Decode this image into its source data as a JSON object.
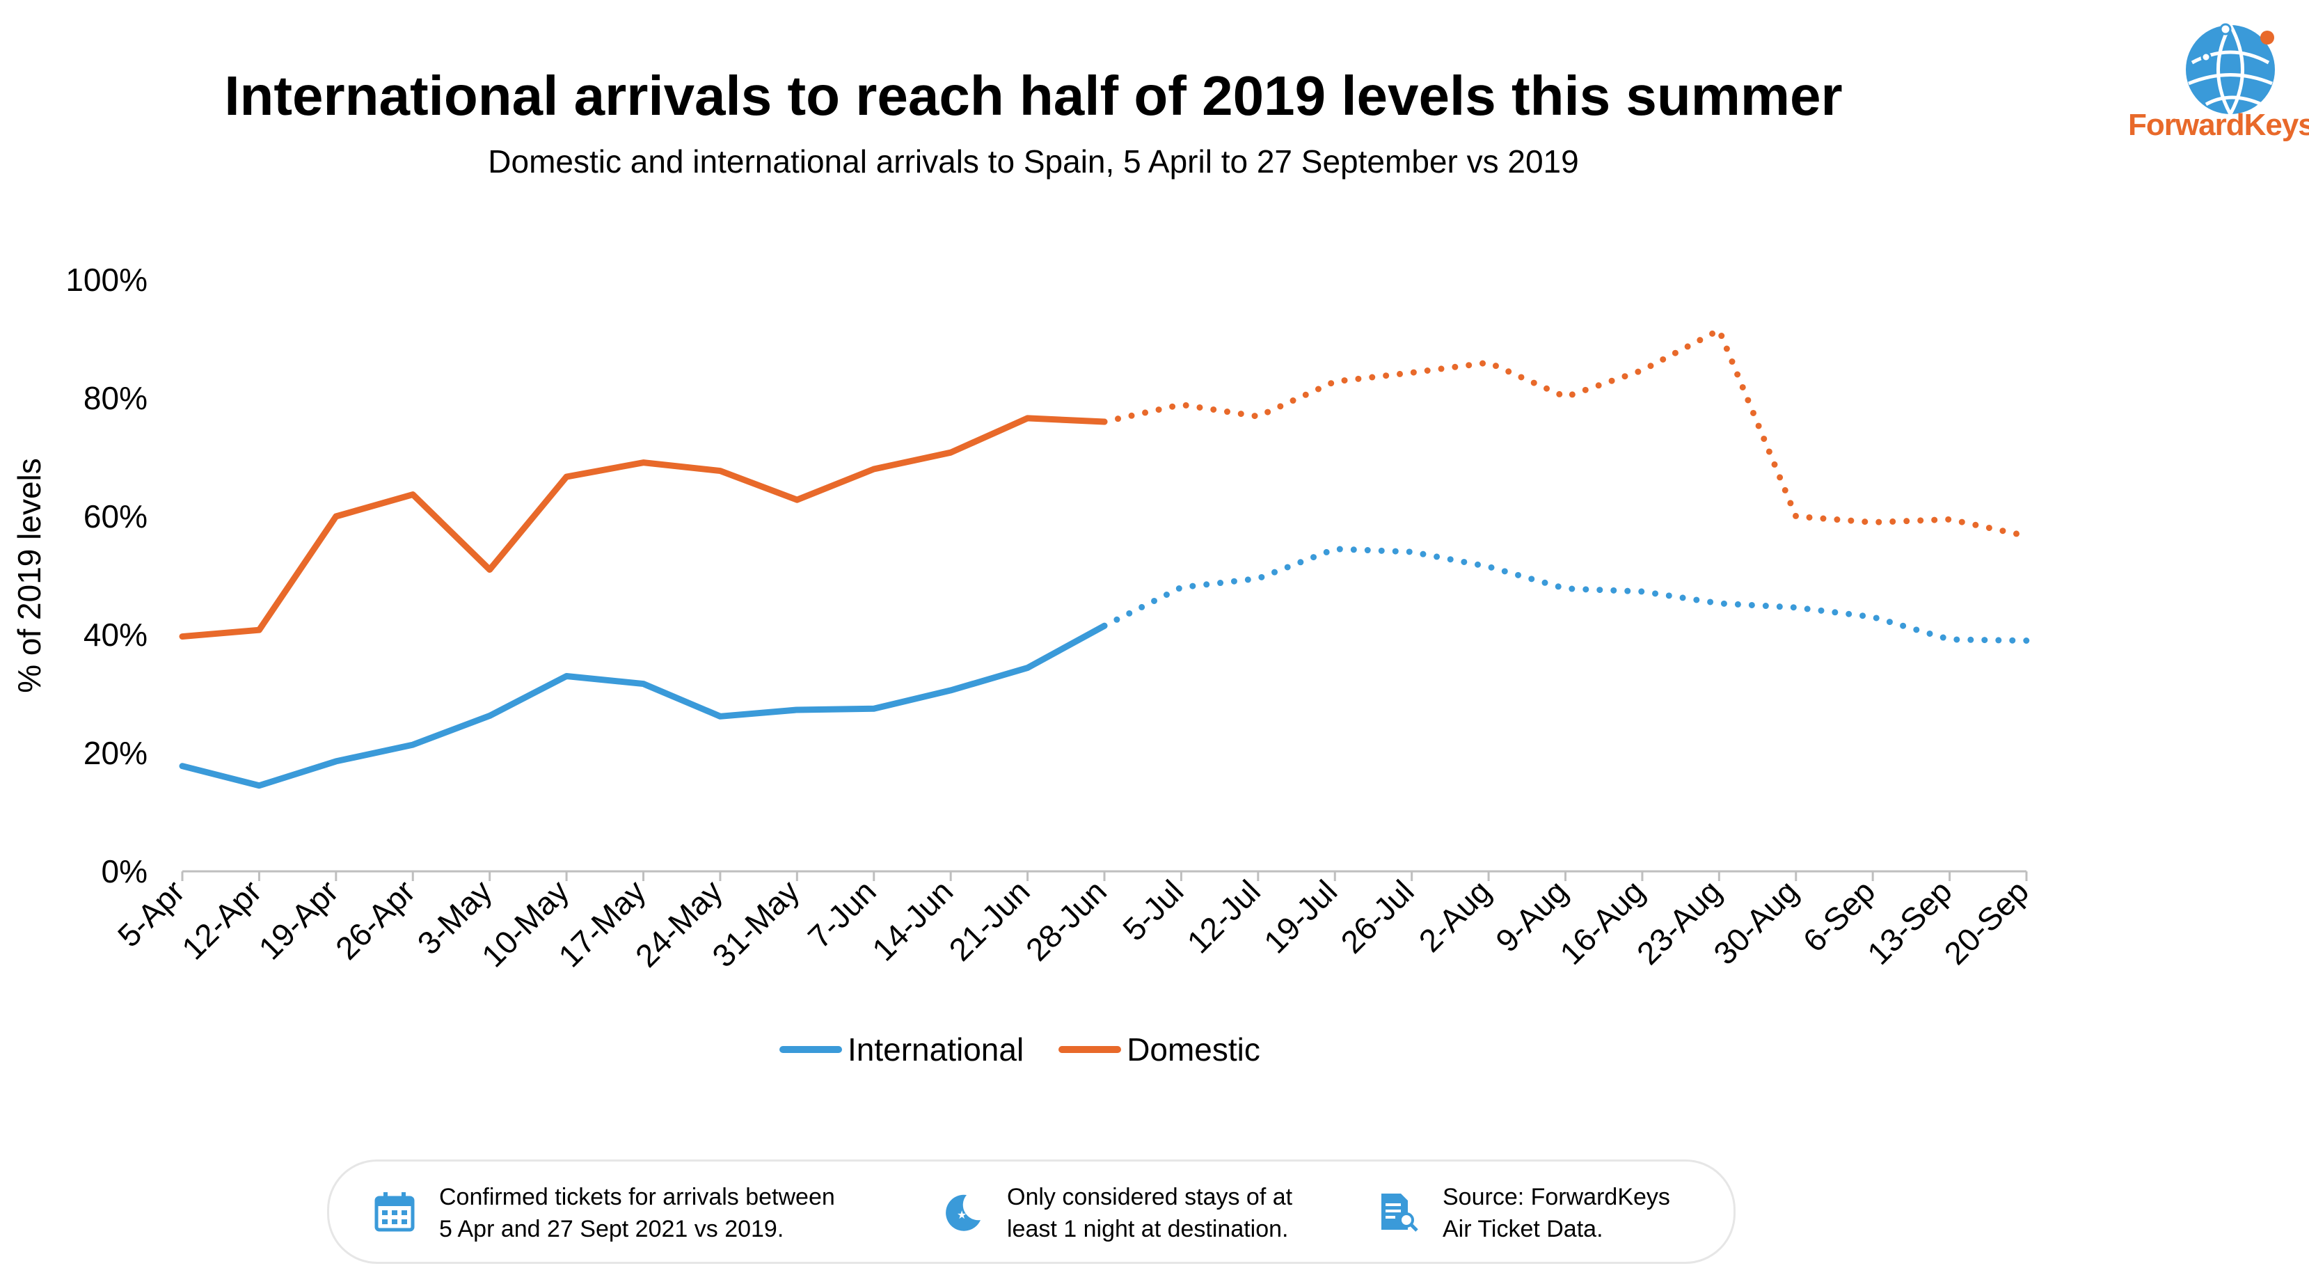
{
  "chart_data": {
    "type": "line",
    "title": "International arrivals to reach half of 2019 levels this summer",
    "subtitle": "Domestic and international arrivals to Spain, 5 April to 27 September vs 2019",
    "ylabel": "% of 2019 levels",
    "ylim": [
      0,
      100
    ],
    "y_ticks": [
      "0%",
      "20%",
      "40%",
      "60%",
      "80%",
      "100%"
    ],
    "categories": [
      "5-Apr",
      "12-Apr",
      "19-Apr",
      "26-Apr",
      "3-May",
      "10-May",
      "17-May",
      "24-May",
      "31-May",
      "7-Jun",
      "14-Jun",
      "21-Jun",
      "28-Jun",
      "5-Jul",
      "12-Jul",
      "19-Jul",
      "26-Jul",
      "2-Aug",
      "9-Aug",
      "16-Aug",
      "23-Aug",
      "30-Aug",
      "6-Sep",
      "13-Sep",
      "20-Sep"
    ],
    "forecast_start_index": 12,
    "series": [
      {
        "name": "International",
        "color": "#3a9ad9",
        "values": [
          17.8,
          14.5,
          18.6,
          21.4,
          26.3,
          33.0,
          31.7,
          26.2,
          27.3,
          27.5,
          30.6,
          34.4,
          41.5,
          48.0,
          49.5,
          54.5,
          54.0,
          51.5,
          47.8,
          47.3,
          45.3,
          44.6,
          43.0,
          39.2,
          39.0
        ]
      },
      {
        "name": "Domestic",
        "color": "#e8692a",
        "values": [
          39.7,
          40.8,
          60.0,
          63.7,
          51.0,
          66.7,
          69.1,
          67.7,
          62.8,
          68.0,
          70.8,
          76.6,
          76.0,
          78.9,
          76.9,
          82.8,
          84.3,
          86.0,
          80.2,
          84.7,
          91.5,
          60.0,
          59.0,
          59.5,
          56.7
        ]
      }
    ],
    "legend_position": "bottom",
    "grid": false
  },
  "brand": {
    "name_part1": "Forward",
    "name_part2": "Keys",
    "icon": "globe-logo-icon"
  },
  "footer": {
    "notes": [
      {
        "icon": "calendar-icon",
        "line1": "Confirmed tickets for arrivals between",
        "line2": "5 Apr and 27 Sept 2021 vs 2019."
      },
      {
        "icon": "moon-stars-icon",
        "line1": "Only considered stays of at",
        "line2": "least 1 night at destination."
      },
      {
        "icon": "document-search-icon",
        "line1": "Source: ForwardKeys",
        "line2": "Air Ticket Data."
      }
    ]
  }
}
